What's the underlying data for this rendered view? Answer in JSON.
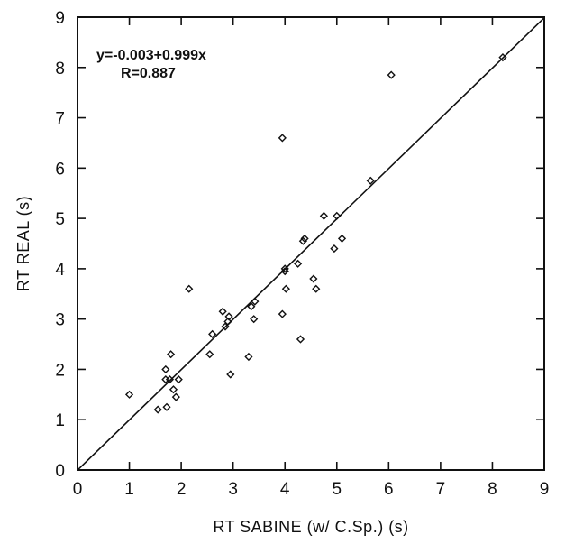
{
  "chart_data": {
    "type": "scatter",
    "title": "",
    "xlabel": "RT SABINE (w/ C.Sp.) (s)",
    "ylabel": "RT REAL (s)",
    "xlim": [
      0,
      9
    ],
    "ylim": [
      0,
      9
    ],
    "xticks": [
      0,
      1,
      2,
      3,
      4,
      5,
      6,
      7,
      8,
      9
    ],
    "yticks": [
      0,
      1,
      2,
      3,
      4,
      5,
      6,
      7,
      8,
      9
    ],
    "grid": false,
    "marker": "diamond",
    "annotations": [
      "y=-0.003+0.999x",
      "R=0.887"
    ],
    "fit_line": {
      "intercept": -0.003,
      "slope": 0.999
    },
    "points": [
      {
        "x": 1.0,
        "y": 1.5
      },
      {
        "x": 1.55,
        "y": 1.2
      },
      {
        "x": 1.7,
        "y": 1.8
      },
      {
        "x": 1.7,
        "y": 2.0
      },
      {
        "x": 1.72,
        "y": 1.25
      },
      {
        "x": 1.78,
        "y": 1.8
      },
      {
        "x": 1.8,
        "y": 2.3
      },
      {
        "x": 1.85,
        "y": 1.6
      },
      {
        "x": 1.9,
        "y": 1.45
      },
      {
        "x": 1.95,
        "y": 1.8
      },
      {
        "x": 2.15,
        "y": 3.6
      },
      {
        "x": 2.55,
        "y": 2.3
      },
      {
        "x": 2.6,
        "y": 2.7
      },
      {
        "x": 2.8,
        "y": 3.15
      },
      {
        "x": 2.85,
        "y": 2.85
      },
      {
        "x": 2.9,
        "y": 2.95
      },
      {
        "x": 2.92,
        "y": 3.05
      },
      {
        "x": 2.95,
        "y": 1.9
      },
      {
        "x": 3.3,
        "y": 2.25
      },
      {
        "x": 3.35,
        "y": 3.25
      },
      {
        "x": 3.4,
        "y": 3.0
      },
      {
        "x": 3.42,
        "y": 3.35
      },
      {
        "x": 3.95,
        "y": 3.1
      },
      {
        "x": 3.95,
        "y": 6.6
      },
      {
        "x": 4.0,
        "y": 3.95
      },
      {
        "x": 4.0,
        "y": 4.0
      },
      {
        "x": 4.02,
        "y": 3.6
      },
      {
        "x": 4.25,
        "y": 4.1
      },
      {
        "x": 4.3,
        "y": 2.6
      },
      {
        "x": 4.35,
        "y": 4.55
      },
      {
        "x": 4.38,
        "y": 4.6
      },
      {
        "x": 4.55,
        "y": 3.8
      },
      {
        "x": 4.6,
        "y": 3.6
      },
      {
        "x": 4.75,
        "y": 5.05
      },
      {
        "x": 4.95,
        "y": 4.4
      },
      {
        "x": 5.0,
        "y": 5.05
      },
      {
        "x": 5.1,
        "y": 4.6
      },
      {
        "x": 5.65,
        "y": 5.75
      },
      {
        "x": 6.05,
        "y": 7.85
      },
      {
        "x": 8.2,
        "y": 8.2
      }
    ]
  }
}
